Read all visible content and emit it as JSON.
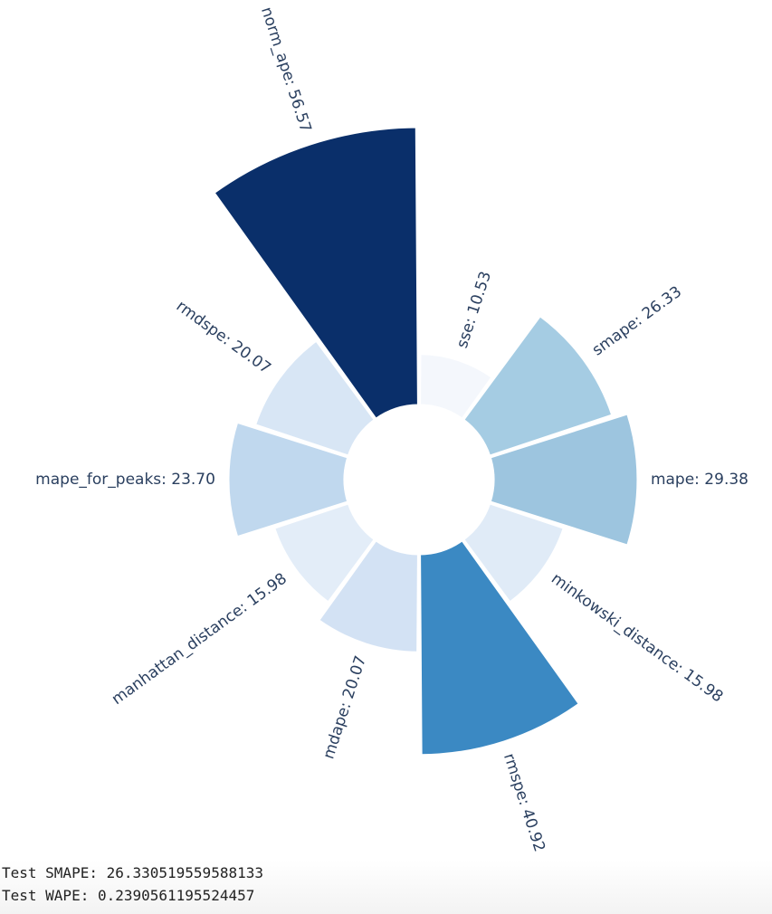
{
  "chart_data": {
    "type": "barpolar",
    "colorscale": "Blues",
    "categories": [
      "sse",
      "smape",
      "mape",
      "minkowski_distance",
      "rmspe",
      "mdape",
      "manhattan_distance",
      "mape_for_peaks",
      "rmdspe",
      "norm_ape"
    ],
    "values": [
      10.53,
      26.33,
      29.38,
      15.98,
      40.92,
      20.07,
      15.98,
      23.7,
      20.07,
      56.57
    ],
    "labels": [
      "sse: 10.53",
      "smape: 26.33",
      "mape: 29.38",
      "minkowski_distance: 15.98",
      "rmspe: 40.92",
      "mdape: 20.07",
      "manhattan_distance: 15.98",
      "mape_for_peaks: 23.70",
      "rmdspe: 20.07",
      "norm_ape: 56.57"
    ],
    "colors": [
      "#f4f7fc",
      "#a5cce3",
      "#9dc5df",
      "#e0ebf7",
      "#3b89c3",
      "#d3e2f4",
      "#e3edf8",
      "#c0d8ee",
      "#d8e6f5",
      "#0a2f6a"
    ],
    "hole": 0.25
  },
  "output": {
    "lines": [
      "Test SMAPE: 26.330519559588133",
      "Test WAPE: 0.2390561195524457"
    ]
  }
}
